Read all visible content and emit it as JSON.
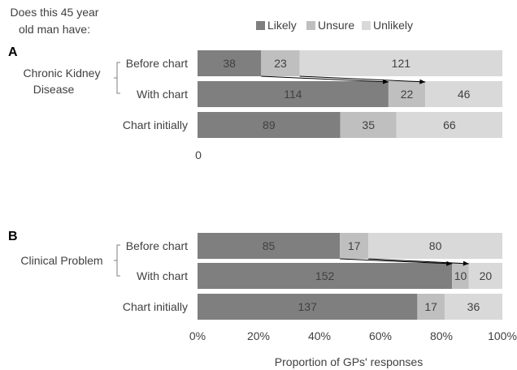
{
  "header": {
    "question_lines": [
      "Does this 45 year",
      "old man have:"
    ]
  },
  "chart_data": {
    "type": "bar",
    "orientation": "horizontal",
    "stacked": true,
    "normalized": true,
    "xlabel": "Proportion of GPs' responses",
    "xlim": [
      0,
      100
    ],
    "xticks": [
      "0%",
      "20%",
      "40%",
      "60%",
      "80%",
      "100%"
    ],
    "legend": {
      "placement": "top",
      "entries": [
        "Likely",
        "Unsure",
        "Unlikely"
      ]
    },
    "colors": {
      "Likely": "#7f7f7f",
      "Unsure": "#bfbfbf",
      "Unlikely": "#d9d9d9"
    },
    "stray_label": "0",
    "panels": [
      {
        "letter": "A",
        "group_label_lines": [
          "Chronic Kidney",
          "Disease"
        ],
        "categories": [
          "Before chart",
          "With chart",
          "Chart initially"
        ],
        "series": [
          {
            "name": "Likely",
            "values": [
              38,
              114,
              89
            ]
          },
          {
            "name": "Unsure",
            "values": [
              23,
              22,
              35
            ]
          },
          {
            "name": "Unlikely",
            "values": [
              121,
              46,
              66
            ]
          }
        ]
      },
      {
        "letter": "B",
        "group_label_lines": [
          "Clinical Problem"
        ],
        "categories": [
          "Before chart",
          "With chart",
          "Chart initially"
        ],
        "series": [
          {
            "name": "Likely",
            "values": [
              85,
              152,
              137
            ]
          },
          {
            "name": "Unsure",
            "values": [
              17,
              10,
              17
            ]
          },
          {
            "name": "Unlikely",
            "values": [
              80,
              20,
              36
            ]
          }
        ]
      }
    ]
  }
}
